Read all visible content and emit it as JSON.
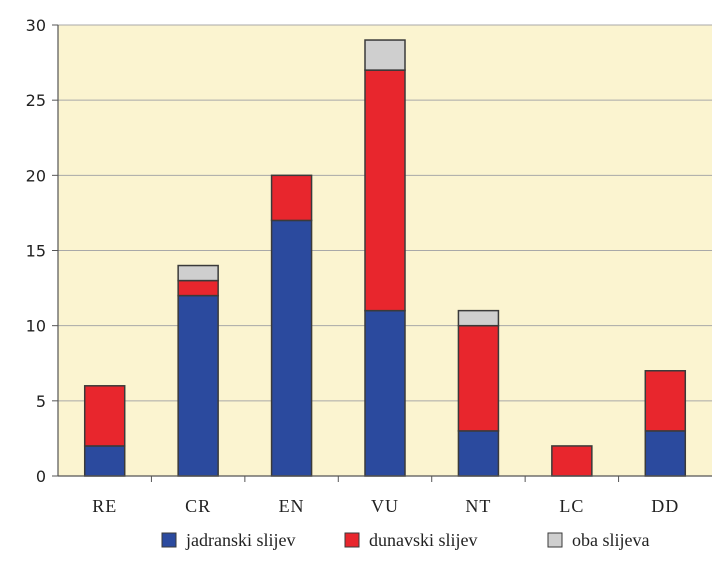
{
  "chart_data": {
    "type": "bar",
    "stacked": true,
    "categories": [
      "RE",
      "CR",
      "EN",
      "VU",
      "NT",
      "LC",
      "DD"
    ],
    "series": [
      {
        "name": "jadranski slijev",
        "color": "#2b4a9e",
        "values": [
          2,
          12,
          17,
          11,
          3,
          0,
          3
        ]
      },
      {
        "name": "dunavski slijev",
        "color": "#e8262d",
        "values": [
          4,
          1,
          3,
          16,
          7,
          2,
          4
        ]
      },
      {
        "name": "oba slijeva",
        "color": "#cfcfcf",
        "values": [
          0,
          1,
          0,
          2,
          1,
          0,
          0
        ]
      }
    ],
    "yticks": [
      "0",
      "5",
      "10",
      "15",
      "20",
      "25",
      "30"
    ],
    "ylim": [
      0,
      30
    ],
    "grid": true,
    "plot_background": "#fbf4d0",
    "grid_color": "#a8a8a8",
    "legend_position": "bottom"
  }
}
